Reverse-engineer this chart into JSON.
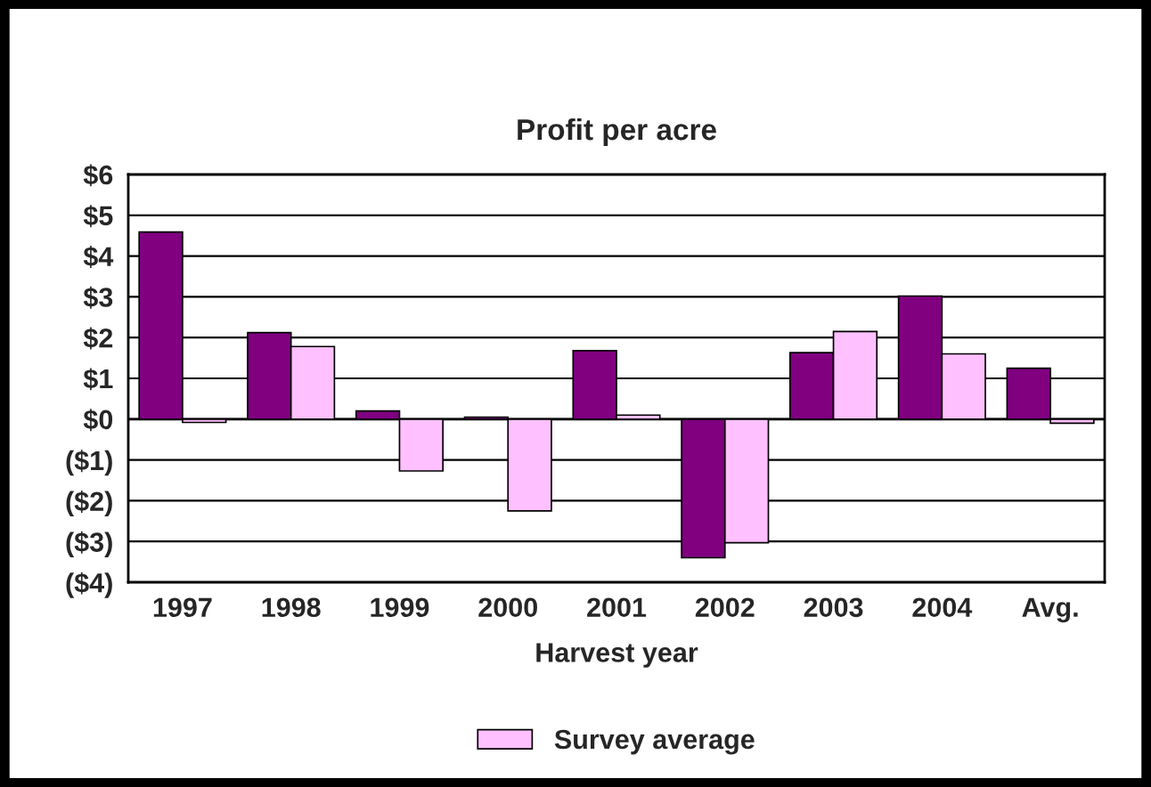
{
  "chart_data": {
    "type": "bar",
    "title": "Profit per acre",
    "xlabel": "Harvest year",
    "categories": [
      "1997",
      "1998",
      "1999",
      "2000",
      "2001",
      "2002",
      "2003",
      "2004",
      "Avg."
    ],
    "series": [
      {
        "color": "#800080",
        "values": [
          4.59,
          2.12,
          0.2,
          0.05,
          1.68,
          -3.4,
          1.63,
          3.02,
          1.25
        ]
      },
      {
        "name": "Survey average",
        "color": "#ffc0ff",
        "values": [
          -0.08,
          1.78,
          -1.27,
          -2.25,
          0.1,
          -3.03,
          2.15,
          1.6,
          -0.1
        ]
      }
    ],
    "ylim": [
      -4,
      6
    ],
    "yticks": [
      {
        "value": 6,
        "label": "$6"
      },
      {
        "value": 5,
        "label": "$5"
      },
      {
        "value": 4,
        "label": "$4"
      },
      {
        "value": 3,
        "label": "$3"
      },
      {
        "value": 2,
        "label": "$2"
      },
      {
        "value": 1,
        "label": "$1"
      },
      {
        "value": 0,
        "label": "$0"
      },
      {
        "value": -1,
        "label": "($1)"
      },
      {
        "value": -2,
        "label": "($2)"
      },
      {
        "value": -3,
        "label": "($3)"
      },
      {
        "value": -4,
        "label": "($4)"
      }
    ],
    "grid": "y",
    "legend": "bottom"
  }
}
